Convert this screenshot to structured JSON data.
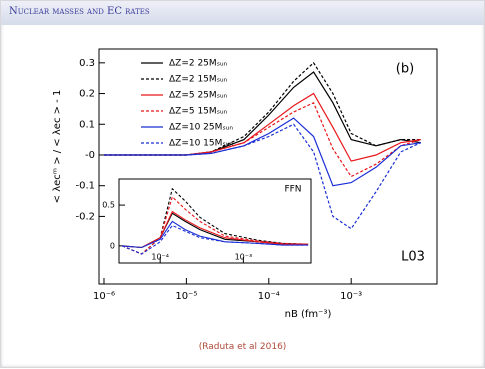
{
  "header": {
    "title": "Nuclear masses and EC rates"
  },
  "footer": {
    "citation": "(Raduta et al 2016)"
  },
  "chart_data": [
    {
      "type": "line",
      "xlog": true,
      "xlabel": "nB (fm⁻³)",
      "ylabel": "< λecᵐ > / < λec > - 1",
      "annotations": [
        "(b)",
        "L03"
      ],
      "xlim": [
        8.7e-07,
        0.011
      ],
      "ylim": [
        -0.42,
        0.345
      ],
      "xticks": [
        {
          "value": 1e-06,
          "label": "10⁻⁶"
        },
        {
          "value": 1e-05,
          "label": "10⁻⁵"
        },
        {
          "value": 0.0001,
          "label": "10⁻⁴"
        },
        {
          "value": 0.001,
          "label": "10⁻³"
        }
      ],
      "yticks": [
        0.3,
        0.2,
        0.1,
        {
          "value": 0,
          "label": "-0"
        },
        -0.1,
        -0.2
      ],
      "legend": "upper left",
      "x": [
        1e-06,
        3e-06,
        1e-05,
        2e-05,
        5e-05,
        0.0001,
        0.0002,
        0.00035,
        0.0006,
        0.001,
        0.002,
        0.004,
        0.007
      ],
      "series": [
        {
          "name": "ΔZ=2 25Mₛᵤₙ",
          "color": "#000000",
          "style": "solid",
          "values": [
            0,
            0,
            0,
            0.01,
            0.05,
            0.13,
            0.22,
            0.27,
            0.17,
            0.05,
            0.03,
            0.05,
            0.04
          ]
        },
        {
          "name": "ΔZ=2 15Mₛᵤₙ",
          "color": "#000000",
          "style": "dashed",
          "values": [
            0,
            0,
            0,
            0.01,
            0.06,
            0.14,
            0.24,
            0.3,
            0.2,
            0.07,
            0.03,
            0.05,
            0.05
          ]
        },
        {
          "name": "ΔZ=5 25Mₛᵤₙ",
          "color": "#e8161b",
          "style": "solid",
          "values": [
            0,
            0,
            0,
            0.01,
            0.04,
            0.1,
            0.16,
            0.2,
            0.09,
            -0.02,
            0,
            0.04,
            0.05
          ]
        },
        {
          "name": "ΔZ=5 15Mₛᵤₙ",
          "color": "#e8161b",
          "style": "dashed",
          "values": [
            0,
            0,
            0,
            0.01,
            0.04,
            0.09,
            0.14,
            0.17,
            0.02,
            -0.07,
            -0.03,
            0.03,
            0.05
          ]
        },
        {
          "name": "ΔZ=10 25Mₛᵤₙ",
          "color": "#1a2fd6",
          "style": "solid",
          "values": [
            0,
            0,
            0,
            0.005,
            0.03,
            0.07,
            0.12,
            0.06,
            -0.1,
            -0.09,
            -0.04,
            0.03,
            0.04
          ]
        },
        {
          "name": "ΔZ=10 15Mₛᵤₙ",
          "color": "#1a2fd6",
          "style": "dashed",
          "values": [
            0,
            0,
            0,
            0.005,
            0.03,
            0.06,
            0.1,
            0.01,
            -0.2,
            -0.24,
            -0.12,
            0.01,
            0.04
          ]
        }
      ]
    },
    {
      "type": "line",
      "xlog": true,
      "annotations": [
        "FFN"
      ],
      "xlim": [
        3.2e-05,
        0.0065
      ],
      "ylim": [
        -0.21,
        0.82
      ],
      "xticks": [
        {
          "value": 0.0001,
          "label": "10⁻⁴"
        },
        {
          "value": 0.001,
          "label": "10⁻³"
        }
      ],
      "yticks": [
        0,
        0.5
      ],
      "x": [
        3.5e-05,
        6e-05,
        0.0001,
        0.00014,
        0.0002,
        0.0003,
        0.0006,
        0.0015,
        0.003,
        0.006
      ],
      "series": [
        {
          "color": "#000000",
          "style": "solid",
          "values": [
            0,
            -0.02,
            0.1,
            0.4,
            0.3,
            0.2,
            0.08,
            0.05,
            0.02,
            0.02
          ]
        },
        {
          "color": "#000000",
          "style": "dashed",
          "values": [
            0,
            -0.1,
            0.1,
            0.7,
            0.55,
            0.35,
            0.15,
            0.07,
            0.03,
            0.02
          ]
        },
        {
          "color": "#e8161b",
          "style": "solid",
          "values": [
            0,
            -0.02,
            0.1,
            0.42,
            0.32,
            0.22,
            0.1,
            0.05,
            0.02,
            0.02
          ]
        },
        {
          "color": "#e8161b",
          "style": "dashed",
          "values": [
            0,
            -0.1,
            0.1,
            0.6,
            0.45,
            0.3,
            0.12,
            0.06,
            0.03,
            0.02
          ]
        },
        {
          "color": "#1a2fd6",
          "style": "solid",
          "values": [
            0,
            -0.02,
            0.08,
            0.3,
            0.2,
            0.12,
            0.05,
            0.03,
            0.01,
            0.01
          ]
        },
        {
          "color": "#1a2fd6",
          "style": "dashed",
          "values": [
            0,
            -0.1,
            0.05,
            0.25,
            0.18,
            0.1,
            0.05,
            0.03,
            0.01,
            0.01
          ]
        }
      ]
    }
  ]
}
